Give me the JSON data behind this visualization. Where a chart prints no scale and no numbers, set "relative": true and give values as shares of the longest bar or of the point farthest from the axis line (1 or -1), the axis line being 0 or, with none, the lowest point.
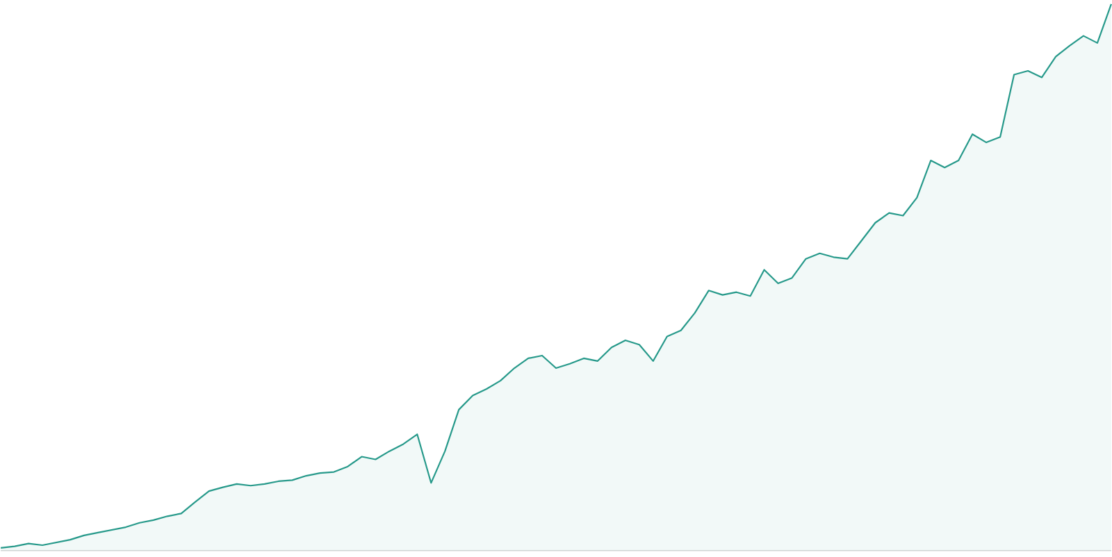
{
  "chart_data": {
    "type": "area",
    "relative": true,
    "color": "#26998a",
    "categories": [
      null,
      null,
      null,
      null,
      null,
      null,
      null,
      null,
      null,
      null,
      null,
      null,
      null,
      null,
      null,
      null,
      null,
      null,
      null,
      null,
      null,
      null,
      null,
      null,
      null,
      null,
      null,
      null,
      null,
      null,
      null,
      null,
      null,
      null,
      null,
      null,
      null,
      null,
      null,
      null,
      null,
      null,
      null,
      null,
      null,
      null,
      null,
      null,
      null,
      null,
      null,
      null,
      null,
      null,
      null,
      null,
      null,
      null,
      null,
      null,
      null,
      null,
      null,
      null,
      null,
      null,
      null,
      null,
      null,
      null,
      null,
      null,
      null,
      null,
      null,
      null,
      null,
      null,
      null,
      null,
      null
    ],
    "values": [
      0.005,
      0.008,
      0.013,
      0.01,
      0.015,
      0.02,
      0.028,
      0.033,
      0.038,
      0.043,
      0.051,
      0.056,
      0.063,
      0.068,
      0.089,
      0.109,
      0.116,
      0.122,
      0.119,
      0.122,
      0.127,
      0.129,
      0.137,
      0.142,
      0.144,
      0.154,
      0.172,
      0.167,
      0.182,
      0.195,
      0.213,
      0.124,
      0.182,
      0.258,
      0.284,
      0.296,
      0.311,
      0.334,
      0.352,
      0.357,
      0.334,
      0.342,
      0.352,
      0.347,
      0.372,
      0.385,
      0.377,
      0.347,
      0.392,
      0.403,
      0.435,
      0.476,
      0.468,
      0.473,
      0.466,
      0.514,
      0.489,
      0.499,
      0.534,
      0.544,
      0.537,
      0.534,
      0.567,
      0.6,
      0.618,
      0.613,
      0.646,
      0.714,
      0.701,
      0.714,
      0.762,
      0.747,
      0.757,
      0.871,
      0.878,
      0.866,
      0.904,
      0.924,
      0.942,
      0.929,
      1.0
    ]
  }
}
